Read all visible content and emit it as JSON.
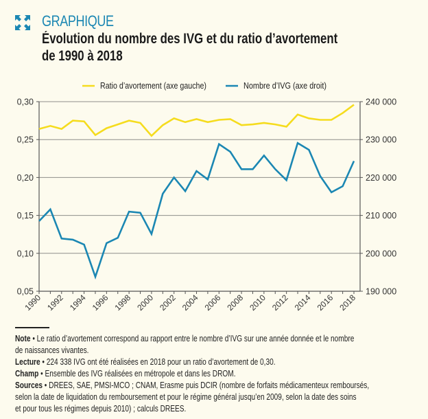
{
  "header": {
    "kicker": "GRAPHIQUE",
    "title_line1": "Évolution du nombre des IVG et du ratio d’avortement",
    "title_line2": "de 1990 à 2018",
    "icon": "expand-arrows-icon",
    "accent_color": "#1b87b3"
  },
  "chart_data": {
    "type": "line",
    "title": "Évolution du nombre des IVG et du ratio d’avortement de 1990 à 2018",
    "x": [
      1990,
      1991,
      1992,
      1993,
      1994,
      1995,
      1996,
      1997,
      1998,
      1999,
      2000,
      2001,
      2002,
      2003,
      2004,
      2005,
      2006,
      2007,
      2008,
      2009,
      2010,
      2011,
      2012,
      2013,
      2014,
      2015,
      2016,
      2017,
      2018
    ],
    "x_tick_labels": [
      "1990",
      "1992",
      "1994",
      "1996",
      "1998",
      "2000",
      "2002",
      "2004",
      "2006",
      "2008",
      "2010",
      "2012",
      "2014",
      "2016",
      "2018"
    ],
    "series": [
      {
        "name": "Ratio d’avortement (axe gauche)",
        "axis": "left",
        "color": "#f5dc1e",
        "values": [
          0.264,
          0.268,
          0.264,
          0.275,
          0.274,
          0.256,
          0.265,
          0.27,
          0.275,
          0.272,
          0.255,
          0.269,
          0.278,
          0.273,
          0.277,
          0.273,
          0.276,
          0.277,
          0.269,
          0.27,
          0.272,
          0.27,
          0.267,
          0.283,
          0.278,
          0.276,
          0.276,
          0.285,
          0.296
        ]
      },
      {
        "name": "Nombre d’IVG (axe droit)",
        "axis": "right",
        "color": "#1b87b3",
        "values": [
          208500,
          211600,
          203900,
          203600,
          202300,
          193800,
          202700,
          204100,
          211000,
          210700,
          205100,
          215700,
          220000,
          216400,
          221700,
          219500,
          228800,
          226800,
          222200,
          222200,
          225800,
          222200,
          219300,
          229100,
          227300,
          220400,
          216100,
          217700,
          224338
        ]
      }
    ],
    "left_axis": {
      "ylim": [
        0.05,
        0.3
      ],
      "ticks": [
        "0,05",
        "0,10",
        "0,15",
        "0,20",
        "0,25",
        "0,30"
      ],
      "tick_values": [
        0.05,
        0.1,
        0.15,
        0.2,
        0.25,
        0.3
      ]
    },
    "right_axis": {
      "ylim": [
        190000,
        240000
      ],
      "ticks": [
        "190 000",
        "200 000",
        "210 000",
        "220 000",
        "230 000",
        "240 000"
      ],
      "tick_values": [
        190000,
        200000,
        210000,
        220000,
        230000,
        240000
      ]
    },
    "grid": true,
    "legend_position": "top"
  },
  "notes": [
    {
      "label": "Note",
      "sep": " • ",
      "text": "Le ratio d’avortement correspond au rapport entre le nombre d’IVG sur une année donnée et le nombre",
      "text2": "de naissances vivantes."
    },
    {
      "label": "Lecture",
      "sep": " • ",
      "text": "224 338 IVG ont été réalisées en 2018 pour un ratio d’avortement de 0,30."
    },
    {
      "label": "Champ",
      "sep": " • ",
      "text": "Ensemble des IVG réalisées en métropole et dans les DROM."
    },
    {
      "label": "Sources",
      "sep": " • ",
      "text": "DREES, SAE, PMSI-MCO ; CNAM, Erasme puis DCIR (nombre de forfaits médicamenteux remboursés,",
      "text2": "selon la date de liquidation du remboursement et pour le régime général jusqu’en 2009, selon la date des soins",
      "text3": "et pour tous les régimes depuis 2010) ; calculs DREES."
    }
  ]
}
